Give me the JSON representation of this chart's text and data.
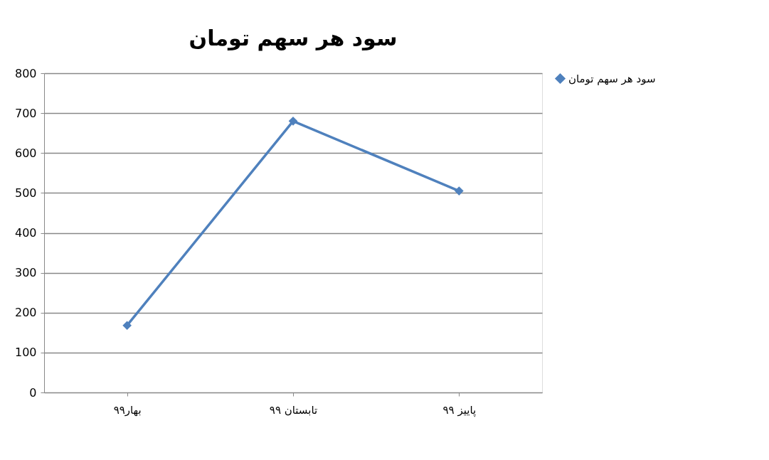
{
  "chart_data": {
    "type": "line",
    "title": "سود هر سهم تومان",
    "categories": [
      "بهار۹۹",
      "تابستان ۹۹",
      "پاییز ۹۹"
    ],
    "series": [
      {
        "name": "سود هر سهم تومان",
        "color": "#4f81bd",
        "values": [
          168,
          680,
          505
        ]
      }
    ],
    "ylim": [
      0,
      800
    ],
    "yticks": [
      0,
      100,
      200,
      300,
      400,
      500,
      600,
      700,
      800
    ],
    "grid": "y",
    "legend": "right",
    "marker": "diamond",
    "line_style": "solid"
  }
}
